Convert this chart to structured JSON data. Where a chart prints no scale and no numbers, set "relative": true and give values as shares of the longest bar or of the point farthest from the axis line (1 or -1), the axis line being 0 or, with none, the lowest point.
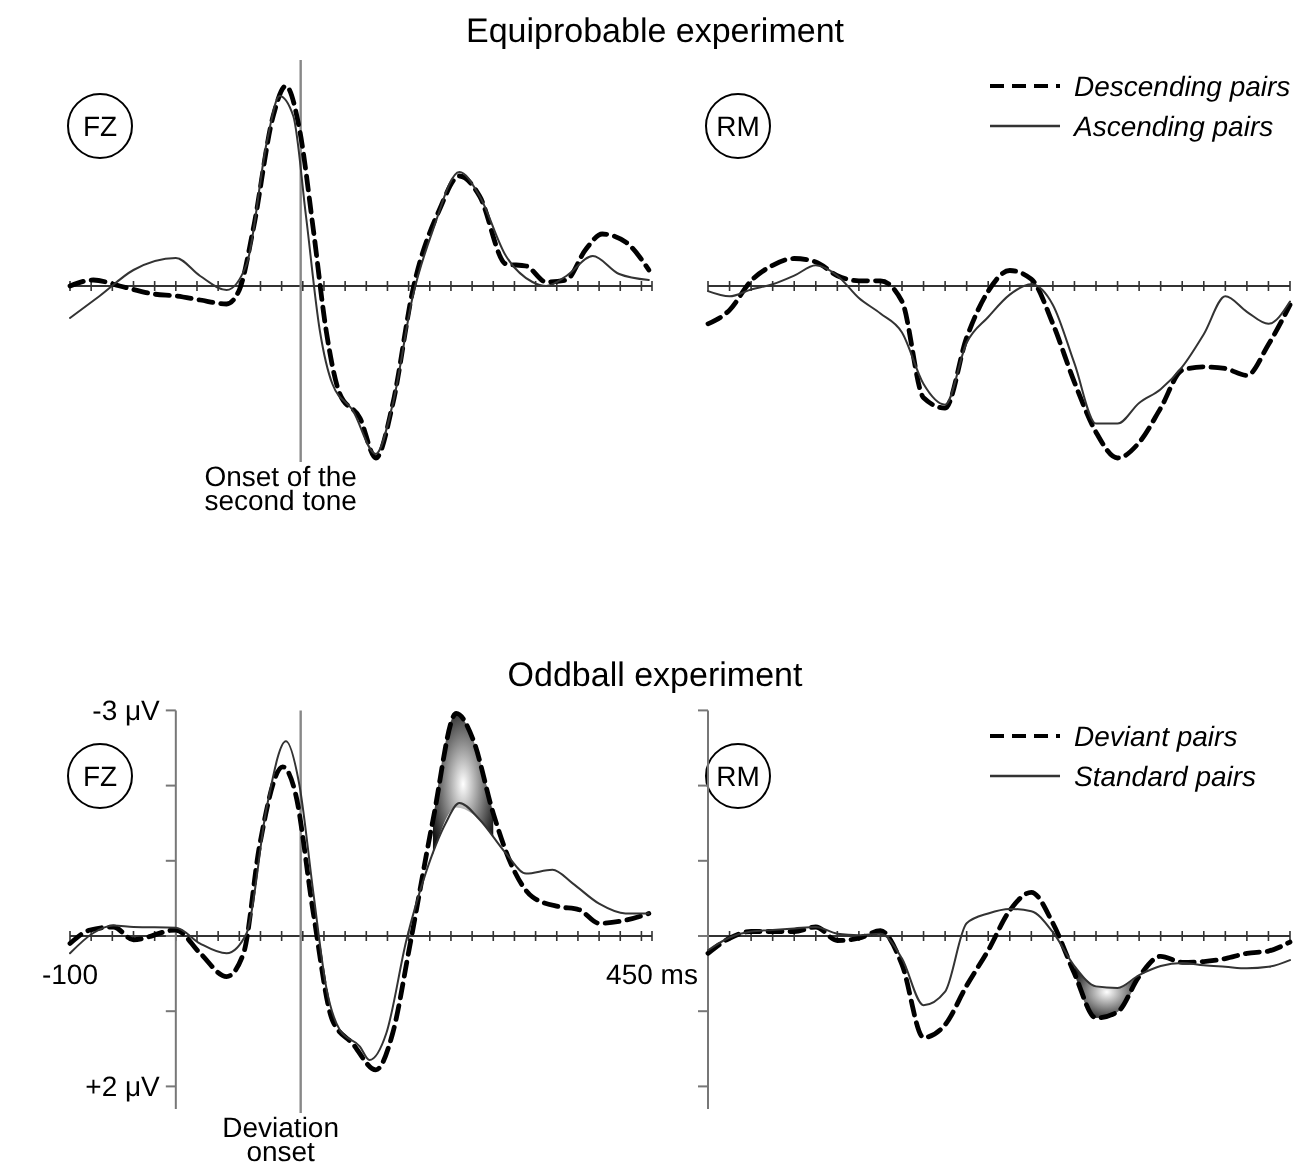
{
  "chart_data": [
    {
      "type": "line",
      "title": "Equiprobable experiment",
      "subtitle": "FZ",
      "relative": true,
      "tick_labels": false,
      "legend": false,
      "xlim": [
        -100,
        450
      ],
      "xticks": [
        -100,
        -80,
        -60,
        -40,
        -20,
        0,
        20,
        40,
        60,
        80,
        100,
        120,
        140,
        160,
        180,
        200,
        220,
        240,
        260,
        280,
        300,
        320,
        340,
        360,
        380,
        400,
        420,
        440,
        450
      ],
      "ref_lines": [
        {
          "axis": "x",
          "value": 118,
          "label": "Onset of the second tone",
          "color": "#888888"
        }
      ],
      "series": [
        {
          "color": "#000000",
          "line_style": "dashed",
          "x": [
            -100,
            -78,
            -53,
            -21,
            1,
            23,
            48,
            60,
            73,
            92,
            104,
            117,
            130,
            142,
            155,
            174,
            189,
            205,
            224,
            249,
            268,
            287,
            312,
            331,
            350,
            369,
            387,
            403,
            425,
            447
          ],
          "values": [
            0,
            0.03,
            0,
            -0.04,
            -0.05,
            -0.07,
            -0.09,
            -0.02,
            0.28,
            0.85,
            1,
            0.78,
            0.28,
            -0.22,
            -0.54,
            -0.66,
            -0.86,
            -0.59,
            -0.02,
            0.38,
            0.55,
            0.45,
            0.11,
            0.1,
            0.02,
            0.03,
            0.18,
            0.26,
            0.22,
            0.08
          ]
        },
        {
          "color": "#333333",
          "line_style": "solid",
          "x": [
            -100,
            -72,
            -40,
            0,
            23,
            48,
            67,
            86,
            98,
            111,
            123,
            136,
            148,
            167,
            189,
            205,
            224,
            243,
            268,
            287,
            312,
            337,
            350,
            369,
            394,
            419,
            447
          ],
          "values": [
            -0.16,
            -0.05,
            0.08,
            0.14,
            0.05,
            -0.02,
            0.11,
            0.72,
            0.95,
            0.85,
            0.35,
            -0.22,
            -0.49,
            -0.62,
            -0.84,
            -0.59,
            -0.05,
            0.28,
            0.57,
            0.45,
            0.15,
            0.02,
            0,
            0.05,
            0.15,
            0.06,
            0.03
          ]
        }
      ]
    },
    {
      "type": "line",
      "subtitle": "RM",
      "relative": true,
      "tick_labels": false,
      "legend": "top right",
      "categories": [
        null,
        null,
        null,
        null,
        null,
        null,
        null,
        null,
        null,
        null,
        null,
        null,
        null,
        null,
        null,
        null,
        null,
        null,
        null,
        null,
        null,
        null,
        null,
        null,
        null,
        null,
        null,
        null
      ],
      "series": [
        {
          "name": "Descending pairs",
          "color": "#000000",
          "line_style": "dashed",
          "values": [
            -0.22,
            -0.14,
            0.03,
            0.12,
            0.16,
            0.14,
            0.06,
            0.03,
            0.03,
            -0.09,
            -0.65,
            -0.71,
            -0.3,
            -0.03,
            0.09,
            0.04,
            -0.22,
            -0.56,
            -0.85,
            -1,
            -0.91,
            -0.71,
            -0.49,
            -0.47,
            -0.48,
            -0.52,
            -0.34,
            -0.11
          ]
        },
        {
          "name": "Ascending pairs",
          "color": "#333333",
          "line_style": "solid",
          "values": [
            -0.03,
            -0.06,
            -0.02,
            0.01,
            0.06,
            0.12,
            0.06,
            -0.07,
            -0.16,
            -0.27,
            -0.57,
            -0.69,
            -0.33,
            -0.18,
            -0.05,
            0.01,
            -0.11,
            -0.45,
            -0.8,
            -0.8,
            -0.68,
            -0.6,
            -0.47,
            -0.28,
            -0.06,
            -0.15,
            -0.22,
            -0.09
          ]
        }
      ]
    },
    {
      "type": "line",
      "title": "Oddball experiment",
      "subtitle": "FZ",
      "legend": false,
      "xlim": [
        -100,
        450
      ],
      "ylim": [
        2.3,
        -3
      ],
      "xticks": [
        {
          "value": -100,
          "label": "-100"
        },
        {
          "value": -80,
          "label": null
        },
        {
          "value": -60,
          "label": null
        },
        {
          "value": -40,
          "label": null
        },
        {
          "value": -20,
          "label": null
        },
        {
          "value": 0,
          "label": null
        },
        {
          "value": 20,
          "label": null
        },
        {
          "value": 40,
          "label": null
        },
        {
          "value": 60,
          "label": null
        },
        {
          "value": 80,
          "label": null
        },
        {
          "value": 100,
          "label": null
        },
        {
          "value": 120,
          "label": null
        },
        {
          "value": 140,
          "label": null
        },
        {
          "value": 160,
          "label": null
        },
        {
          "value": 180,
          "label": null
        },
        {
          "value": 200,
          "label": null
        },
        {
          "value": 220,
          "label": null
        },
        {
          "value": 240,
          "label": null
        },
        {
          "value": 260,
          "label": null
        },
        {
          "value": 280,
          "label": null
        },
        {
          "value": 300,
          "label": null
        },
        {
          "value": 320,
          "label": null
        },
        {
          "value": 340,
          "label": null
        },
        {
          "value": 360,
          "label": null
        },
        {
          "value": 380,
          "label": null
        },
        {
          "value": 400,
          "label": null
        },
        {
          "value": 420,
          "label": null
        },
        {
          "value": 440,
          "label": null
        },
        {
          "value": 450,
          "label": "450 ms"
        }
      ],
      "yticks": [
        {
          "value": -3,
          "label": "-3 μV"
        },
        {
          "value": -2,
          "label": null
        },
        {
          "value": -1,
          "label": null
        },
        {
          "value": 0,
          "label": null
        },
        {
          "value": 1,
          "label": null
        },
        {
          "value": 2,
          "label": "+2 μV"
        }
      ],
      "ref_lines": [
        {
          "axis": "x",
          "value": 118,
          "label": "Deviation onset",
          "color": "#888888"
        }
      ],
      "series": [
        {
          "color": "#000000",
          "line_style": "dashed",
          "x": [
            -100,
            -81,
            -59,
            -40,
            0,
            23,
            48,
            64,
            79,
            101,
            113,
            130,
            148,
            167,
            189,
            205,
            221,
            243,
            265,
            281,
            300,
            318,
            337,
            362,
            381,
            400,
            425,
            447
          ],
          "values": [
            0.1,
            -0.08,
            -0.12,
            0.05,
            -0.08,
            0.23,
            0.54,
            0.23,
            -1.19,
            -2.25,
            -1.9,
            -0.3,
            1.12,
            1.43,
            1.78,
            1.29,
            0.14,
            -1.54,
            -2.96,
            -2.61,
            -1.63,
            -0.92,
            -0.52,
            -0.39,
            -0.35,
            -0.17,
            -0.21,
            -0.3
          ],
          "lower": [
            null,
            null,
            null,
            null,
            null,
            null,
            null,
            null,
            null,
            null,
            null,
            null,
            null,
            null,
            null,
            null,
            null,
            -1.54,
            -2.96,
            -2.61,
            -1.63,
            null,
            null,
            null,
            null,
            null,
            null,
            null
          ],
          "upper": [
            null,
            null,
            null,
            null,
            null,
            null,
            null,
            null,
            null,
            null,
            null,
            null,
            null,
            null,
            null,
            null,
            null,
            -1.08,
            -1.71,
            -1.62,
            -1.32,
            null,
            null,
            null,
            null,
            null,
            null,
            null
          ]
        },
        {
          "color": "#333333",
          "line_style": "solid",
          "x": [
            -100,
            -78,
            -59,
            -40,
            0,
            23,
            48,
            67,
            86,
            104,
            117,
            130,
            142,
            155,
            174,
            183,
            199,
            218,
            236,
            255,
            268,
            287,
            312,
            331,
            356,
            375,
            400,
            425,
            447
          ],
          "values": [
            0.23,
            -0.04,
            -0.14,
            -0.12,
            -0.11,
            0.1,
            0.23,
            -0.04,
            -1.72,
            -2.59,
            -1.99,
            -0.57,
            0.67,
            1.25,
            1.47,
            1.65,
            1.29,
            0.05,
            -0.83,
            -1.5,
            -1.77,
            -1.55,
            -1.1,
            -0.83,
            -0.88,
            -0.7,
            -0.43,
            -0.3,
            -0.3
          ]
        }
      ]
    },
    {
      "type": "line",
      "subtitle": "RM",
      "tick_labels": false,
      "legend": "top right",
      "ylim": [
        2.3,
        -3
      ],
      "yticks": [
        -3,
        -2,
        -1,
        0,
        1,
        2
      ],
      "categories": [
        null,
        null,
        null,
        null,
        null,
        null,
        null,
        null,
        null,
        null,
        null,
        null,
        null,
        null,
        null,
        null,
        null,
        null,
        null,
        null,
        null,
        null,
        null,
        null,
        null,
        null,
        null,
        null
      ],
      "series": [
        {
          "name": "Deviant pairs",
          "color": "#000000",
          "line_style": "dashed",
          "values": [
            0.23,
            0.03,
            -0.06,
            -0.06,
            -0.06,
            -0.12,
            0.06,
            0.03,
            -0.07,
            0.38,
            1.35,
            1.18,
            0.66,
            0.19,
            -0.34,
            -0.58,
            -0.17,
            0.5,
            1.09,
            1.01,
            0.54,
            0.27,
            0.35,
            0.34,
            0.3,
            0.23,
            0.2,
            0.08
          ],
          "lower": [
            null,
            null,
            null,
            null,
            null,
            null,
            null,
            null,
            null,
            null,
            null,
            null,
            null,
            null,
            null,
            null,
            null,
            0.4,
            0.67,
            0.69,
            0.52,
            null,
            null,
            null,
            null,
            null,
            null,
            null
          ],
          "upper": [
            null,
            null,
            null,
            null,
            null,
            null,
            null,
            null,
            null,
            null,
            null,
            null,
            null,
            null,
            null,
            null,
            null,
            0.5,
            1.09,
            1.01,
            0.54,
            null,
            null,
            null,
            null,
            null,
            null,
            null
          ]
        },
        {
          "name": "Standard pairs",
          "color": "#333333",
          "line_style": "solid",
          "values": [
            0.19,
            0.02,
            -0.06,
            -0.08,
            -0.1,
            -0.12,
            -0.03,
            -0.01,
            -0.03,
            0.3,
            0.92,
            0.74,
            -0.17,
            -0.3,
            -0.36,
            -0.33,
            -0.05,
            0.4,
            0.67,
            0.69,
            0.52,
            0.4,
            0.36,
            0.39,
            0.41,
            0.43,
            0.41,
            0.32
          ]
        }
      ]
    }
  ]
}
